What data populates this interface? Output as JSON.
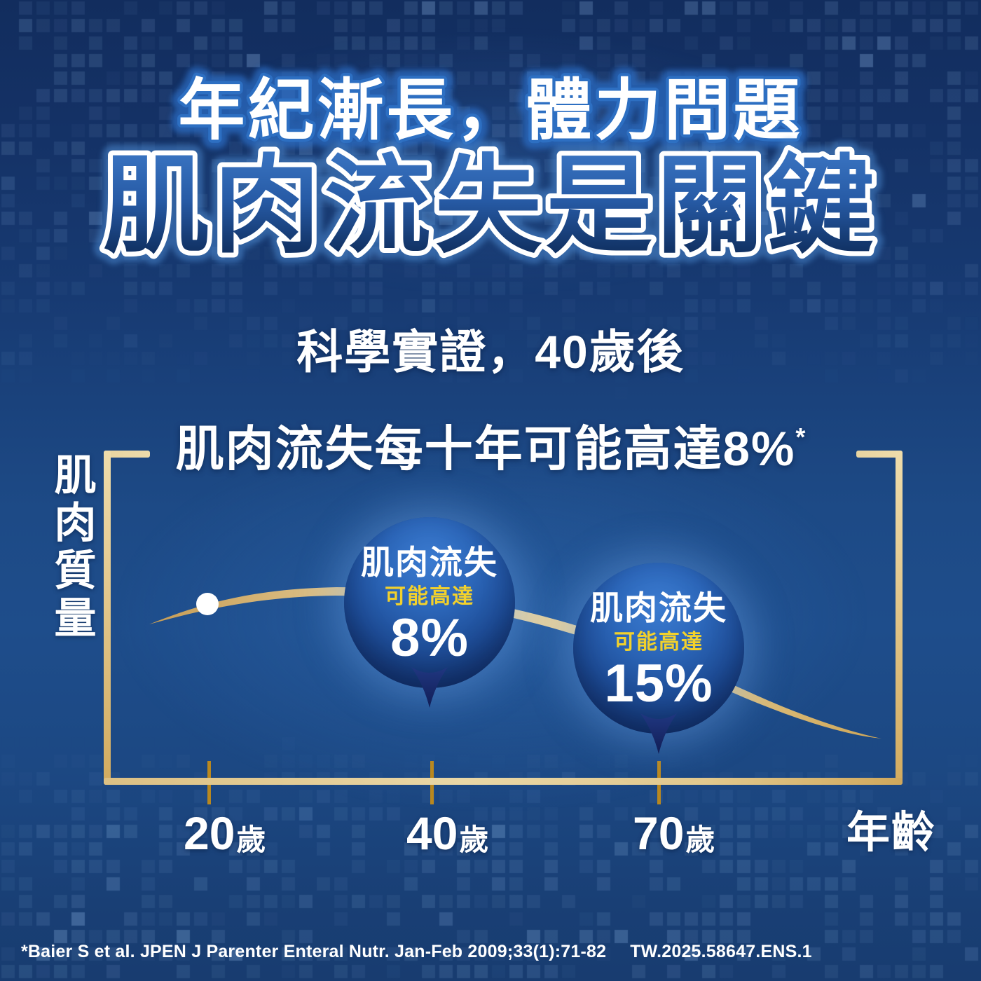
{
  "headline": {
    "line1": "年紀漸長，體力問題",
    "line2": "肌肉流失是關鍵"
  },
  "subheadline": {
    "line1": "科學實證，40歲後",
    "line2": "肌肉流失每十年可能高達8%",
    "footnote_mark": "*"
  },
  "axis": {
    "y_label": "肌肉質量",
    "x_axis_title": "年齡",
    "x_ticks": [
      {
        "number": "20",
        "suffix": "歲"
      },
      {
        "number": "40",
        "suffix": "歲"
      },
      {
        "number": "70",
        "suffix": "歲"
      }
    ]
  },
  "bubbles": [
    {
      "title": "肌肉流失",
      "subtitle": "可能高達",
      "value": "8%"
    },
    {
      "title": "肌肉流失",
      "subtitle": "可能高達",
      "value": "15%"
    }
  ],
  "footer": {
    "citation": "*Baier S et al. JPEN J Parenter Enteral Nutr. Jan-Feb 2009;33(1):71-82",
    "approval_code": "TW.2025.58647.ENS.1"
  },
  "chart_data": {
    "type": "line",
    "title": "肌肉流失每十年可能高達8%*",
    "context_title": "科學實證，40歲後",
    "xlabel": "年齡",
    "ylabel": "肌肉質量",
    "x_tick_labels": [
      "20歲",
      "40歲",
      "70歲"
    ],
    "x_tick_values_years": [
      20,
      40,
      70
    ],
    "y_axis_numeric": false,
    "grid": false,
    "legend": "none",
    "series": [
      {
        "name": "肌肉質量 (相對高度, 佔圖框比例, 依像素估計)",
        "x_years": [
          15,
          20,
          30,
          40,
          50,
          60,
          70,
          85,
          100
        ],
        "y_relative": [
          0.48,
          0.545,
          0.57,
          0.578,
          0.54,
          0.46,
          0.375,
          0.23,
          0.136
        ]
      }
    ],
    "markers": [
      {
        "x_years": 20,
        "shape": "dot",
        "color": "#ffffff",
        "meaning": "肌肉質量於20歲位置標記"
      }
    ],
    "annotations": [
      {
        "anchor": "40歲",
        "title": "肌肉流失",
        "subtitle": "可能高達",
        "value": "8%"
      },
      {
        "anchor": "70歲",
        "title": "肌肉流失",
        "subtitle": "可能高達",
        "value": "15%"
      }
    ],
    "shape_note": "曲線自20歲前緩升，約40歲達高峰後逐漸下降，70歲後下降加劇"
  },
  "colors": {
    "background_top": "#132f62",
    "background_mid": "#1e4d8b",
    "background_bottom": "#183c70",
    "gold_axis": "#e3c98f",
    "gold_tick": "#b9881f",
    "accent_yellow": "#f2d12c",
    "bubble_blue": "#2c67ba",
    "title_outline_blue": "#2d6fc2",
    "text_white": "#ffffff"
  }
}
